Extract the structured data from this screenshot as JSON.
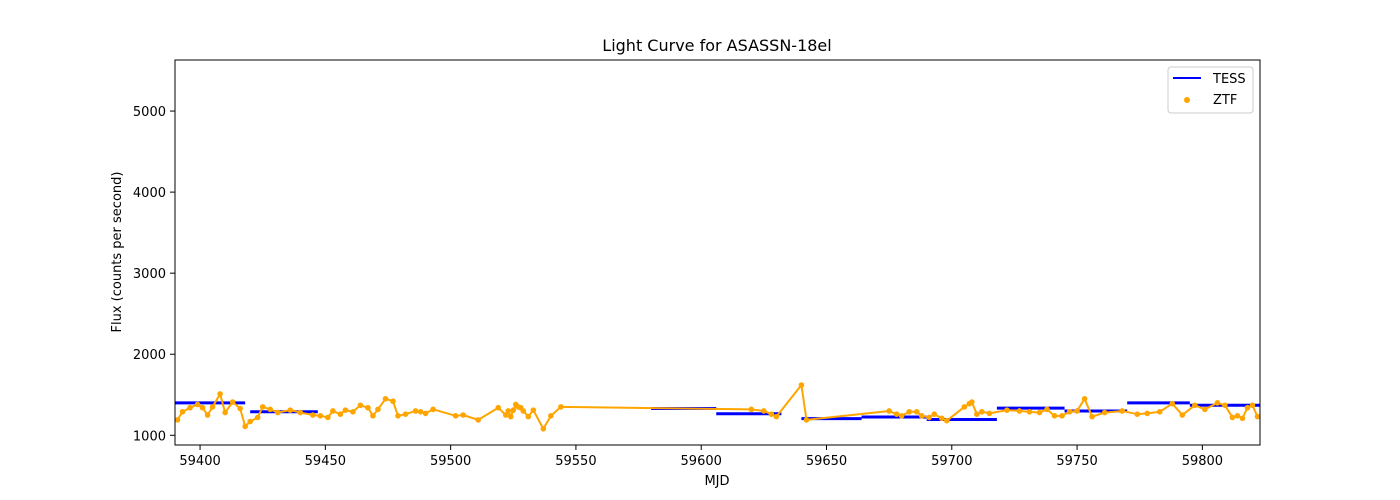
{
  "chart_data": {
    "type": "line",
    "title": "Light Curve for ASASSN-18el",
    "xlabel": "MJD",
    "ylabel": "Flux (counts per second)",
    "xlim": [
      59390,
      59823
    ],
    "ylim": [
      880,
      5630
    ],
    "xticks": [
      59400,
      59450,
      59500,
      59550,
      59600,
      59650,
      59700,
      59750,
      59800
    ],
    "yticks": [
      1000,
      2000,
      3000,
      4000,
      5000
    ],
    "grid": false,
    "legend": {
      "placement": "top-right",
      "entries": [
        "TESS",
        "ZTF"
      ]
    },
    "colors": {
      "TESS": "#0000ff",
      "ZTF": "#ffa500"
    },
    "series": [
      {
        "name": "TESS",
        "style": "line",
        "segments": [
          {
            "x": [
              59390,
              59418
            ],
            "y": [
              1400,
              1400
            ]
          },
          {
            "x": [
              59420,
              59447
            ],
            "y": [
              1290,
              1290
            ]
          },
          {
            "x": [
              59580,
              59606
            ],
            "y": [
              1330,
              1330
            ]
          },
          {
            "x": [
              59606,
              59632
            ],
            "y": [
              1265,
              1265
            ]
          },
          {
            "x": [
              59640,
              59664
            ],
            "y": [
              1205,
              1205
            ]
          },
          {
            "x": [
              59664,
              59690
            ],
            "y": [
              1225,
              1225
            ]
          },
          {
            "x": [
              59690,
              59718
            ],
            "y": [
              1195,
              1195
            ]
          },
          {
            "x": [
              59718,
              59745
            ],
            "y": [
              1335,
              1335
            ]
          },
          {
            "x": [
              59745,
              59770
            ],
            "y": [
              1300,
              1300
            ]
          },
          {
            "x": [
              59770,
              59795
            ],
            "y": [
              1400,
              1400
            ]
          },
          {
            "x": [
              59795,
              59823
            ],
            "y": [
              1370,
              1370
            ]
          }
        ]
      },
      {
        "name": "ZTF",
        "style": "scatter+line",
        "x": [
          59391,
          59393,
          59396,
          59399,
          59401,
          59403,
          59405,
          59408,
          59410,
          59413,
          59416,
          59418,
          59420,
          59423,
          59425,
          59428,
          59431,
          59436,
          59440,
          59445,
          59448,
          59451,
          59453,
          59456,
          59458,
          59461,
          59464,
          59467,
          59469,
          59471,
          59474,
          59477,
          59479,
          59482,
          59486,
          59488,
          59490,
          59493,
          59502,
          59505,
          59511,
          59519,
          59522,
          59523,
          59524,
          59525,
          59526,
          59527,
          59528,
          59529,
          59531,
          59533,
          59537,
          59540,
          59544,
          59620,
          59625,
          59628,
          59630,
          59640,
          59642,
          59675,
          59678,
          59680,
          59683,
          59686,
          59688,
          59691,
          59693,
          59696,
          59698,
          59705,
          59707,
          59708,
          59710,
          59712,
          59715,
          59722,
          59727,
          59731,
          59735,
          59738,
          59741,
          59744,
          59747,
          59750,
          59753,
          59756,
          59761,
          59768,
          59774,
          59778,
          59783,
          59788,
          59792,
          59797,
          59801,
          59806,
          59809,
          59812,
          59814,
          59816,
          59818,
          59820,
          59822
        ],
        "y": [
          1190,
          1290,
          1340,
          1380,
          1340,
          1250,
          1350,
          1510,
          1280,
          1410,
          1330,
          1110,
          1170,
          1220,
          1350,
          1320,
          1280,
          1310,
          1280,
          1250,
          1240,
          1220,
          1300,
          1260,
          1310,
          1290,
          1370,
          1340,
          1240,
          1320,
          1450,
          1420,
          1240,
          1260,
          1300,
          1290,
          1270,
          1320,
          1240,
          1250,
          1190,
          1340,
          1250,
          1300,
          1230,
          1310,
          1380,
          1350,
          1340,
          1300,
          1230,
          1310,
          1080,
          1240,
          1350,
          1320,
          1300,
          1260,
          1230,
          1620,
          1190,
          1300,
          1260,
          1240,
          1290,
          1290,
          1240,
          1220,
          1260,
          1210,
          1180,
          1350,
          1390,
          1410,
          1260,
          1290,
          1270,
          1310,
          1300,
          1290,
          1280,
          1320,
          1240,
          1240,
          1290,
          1300,
          1450,
          1230,
          1280,
          1300,
          1260,
          1270,
          1290,
          1390,
          1250,
          1370,
          1320,
          1400,
          1370,
          1220,
          1240,
          1210,
          1340,
          1370,
          1230
        ]
      }
    ]
  }
}
